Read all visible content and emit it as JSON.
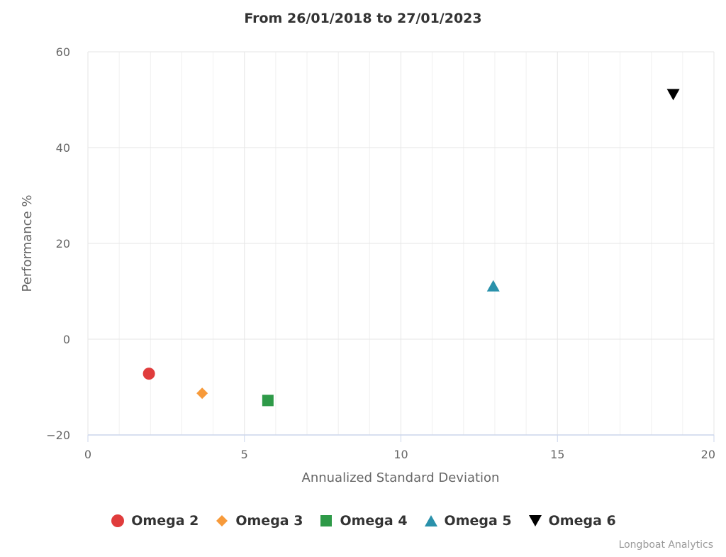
{
  "chart_data": {
    "type": "scatter",
    "title": "From 26/01/2018 to 27/01/2023",
    "xlabel": "Annualized Standard Deviation",
    "ylabel": "Performance %",
    "xlim": [
      0,
      20
    ],
    "ylim": [
      -20,
      60
    ],
    "xticks": [
      0,
      5,
      10,
      15,
      20
    ],
    "xtick_labels": [
      "0",
      "5",
      "10",
      "15",
      "20"
    ],
    "yticks": [
      -20,
      0,
      20,
      40,
      60
    ],
    "ytick_labels": [
      "−20",
      "0",
      "20",
      "40",
      "60"
    ],
    "grid": true,
    "legend_position": "bottom-center",
    "series": [
      {
        "name": "Omega 2",
        "marker": "circle",
        "color": "#e03c3c",
        "x": [
          1.95
        ],
        "y": [
          -7.2
        ]
      },
      {
        "name": "Omega 3",
        "marker": "diamond",
        "color": "#f79a3a",
        "x": [
          3.65
        ],
        "y": [
          -11.3
        ]
      },
      {
        "name": "Omega 4",
        "marker": "square",
        "color": "#2e9a48",
        "x": [
          5.75
        ],
        "y": [
          -12.8
        ]
      },
      {
        "name": "Omega 5",
        "marker": "triangle",
        "color": "#2a91ab",
        "x": [
          12.95
        ],
        "y": [
          11.0
        ]
      },
      {
        "name": "Omega 6",
        "marker": "triangle-down",
        "color": "#000000",
        "x": [
          18.7
        ],
        "y": [
          51.2
        ]
      }
    ]
  },
  "credits": "Longboat Analytics"
}
